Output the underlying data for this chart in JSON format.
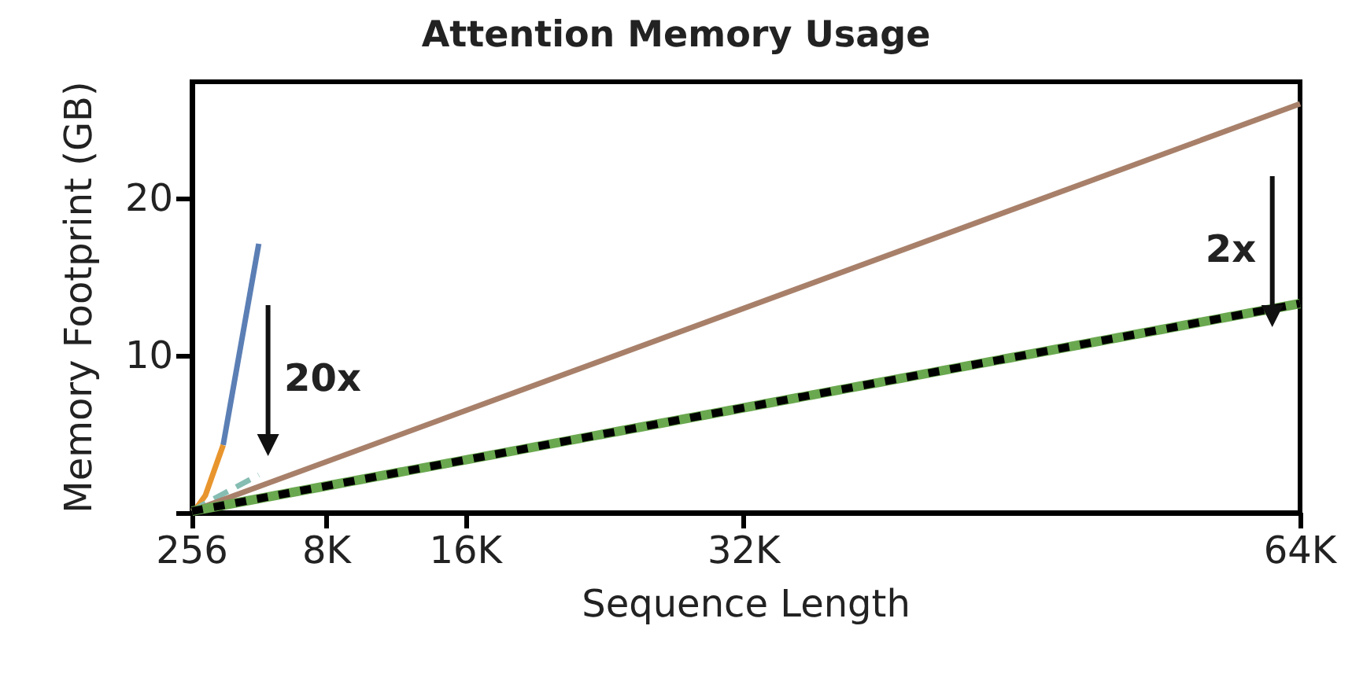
{
  "chart_data": {
    "type": "line",
    "title": "Attention Memory Usage",
    "xlabel": "Sequence Length",
    "ylabel": "Memory Footprint (GB)",
    "xlim": [
      256,
      64000
    ],
    "xticks": [
      256,
      {
        "value": 8000,
        "label": "8K"
      },
      {
        "value": 16000,
        "label": "16K"
      },
      {
        "value": 32000,
        "label": "32K"
      },
      {
        "value": 64000,
        "label": "64K"
      }
    ],
    "ylim": [
      0,
      27.4
    ],
    "yticks": [
      {
        "value": 0,
        "label": null
      },
      10,
      20
    ],
    "grid": false,
    "marker": "none",
    "series": [
      {
        "color": "#5b7fb5",
        "x": [
          2048,
          4096
        ],
        "values": [
          4.3,
          17.1
        ],
        "line_style": "solid"
      },
      {
        "color": "#e8952e",
        "x": [
          256,
          512,
          1024,
          2048
        ],
        "values": [
          0.1,
          0.3,
          1.1,
          4.3
        ],
        "line_style": "solid"
      },
      {
        "color": "#86bdb3",
        "x": [
          256,
          1024,
          2048,
          4096
        ],
        "values": [
          0.1,
          0.6,
          1.2,
          2.4
        ],
        "line_style": "dashed"
      },
      {
        "color": "#a8806a",
        "x": [
          256,
          64000
        ],
        "values": [
          0.1,
          26.0
        ],
        "line_style": "solid"
      },
      {
        "color": "#6aa84f",
        "x": [
          256,
          64000
        ],
        "values": [
          0.1,
          13.3
        ],
        "line_style": "solid"
      },
      {
        "color": "#000000",
        "x": [
          256,
          64000
        ],
        "values": [
          0.1,
          13.3
        ],
        "line_style": "dotted"
      }
    ],
    "annotations": [
      "20x",
      "2x"
    ]
  }
}
